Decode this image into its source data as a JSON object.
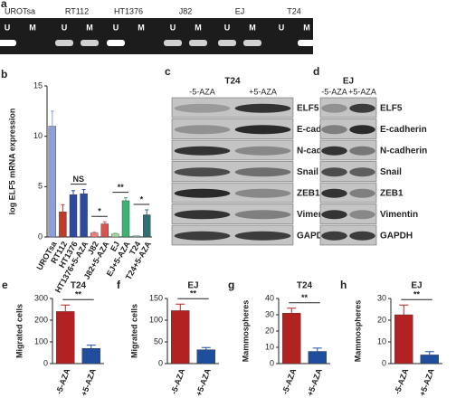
{
  "gel": {
    "label": "a",
    "samples": [
      "UROTsa",
      "RT112",
      "HT1376",
      "J82",
      "EJ",
      "T24"
    ],
    "lanes": [
      "U",
      "M"
    ]
  },
  "blots": [
    {
      "label": "c",
      "title": "T24",
      "conditions": [
        "-5-AZA",
        "+5-AZA"
      ],
      "proteins": [
        "ELF5",
        "E-cadherin",
        "N-cadherin",
        "Snail",
        "ZEB1",
        "Vimentin",
        "GAPDH"
      ]
    },
    {
      "label": "d",
      "title": "EJ",
      "conditions": [
        "-5-AZA",
        "+5-AZA"
      ],
      "proteins": [
        "ELF5",
        "E-cadherin",
        "N-cadherin",
        "Snail",
        "ZEB1",
        "Vimentin",
        "GAPDH"
      ]
    }
  ],
  "chart_data": [
    {
      "type": "bar",
      "panel": "b",
      "y_label": "log ELF5 mRNA expression",
      "categories": [
        "UROTsa",
        "RT112",
        "HT1376",
        "HT1376+5-AZA",
        "J82",
        "J82+5-AZA",
        "EJ",
        "EJ+5-AZA",
        "T24",
        "T24+5-AZA"
      ],
      "values": [
        11,
        2.5,
        4.2,
        4.3,
        0.4,
        1.3,
        0.3,
        3.6,
        0.1,
        2.2
      ],
      "errors": [
        1.5,
        0.7,
        0.4,
        0.4,
        0.1,
        0.2,
        0.1,
        0.3,
        0.05,
        0.5
      ],
      "colors": [
        "#8d9fd6",
        "#c0392b",
        "#2e4a9e",
        "#2e4a9e",
        "#f08080",
        "#d9534f",
        "#9fdb9f",
        "#3cb371",
        "#9cc9c7",
        "#2f6f73"
      ],
      "annotations": [
        "NS",
        "*",
        "**",
        "*"
      ],
      "ylim": [
        0,
        15
      ],
      "yticks": [
        0,
        5,
        10,
        15
      ]
    },
    {
      "type": "bar",
      "panel": "e",
      "title": "T24",
      "y_label": "Migrated cells",
      "categories": [
        "-5-AZA",
        "+5-AZA"
      ],
      "values": [
        240,
        70
      ],
      "errors": [
        30,
        15
      ],
      "colors": [
        "#b22222",
        "#1f4e9c"
      ],
      "annotations": [
        "**"
      ],
      "ylim": [
        0,
        300
      ],
      "yticks": [
        0,
        100,
        200,
        300
      ]
    },
    {
      "type": "bar",
      "panel": "f",
      "title": "EJ",
      "y_label": "Migrated cells",
      "categories": [
        "-5-AZA",
        "+5-AZA"
      ],
      "values": [
        122,
        32
      ],
      "errors": [
        15,
        5
      ],
      "colors": [
        "#b22222",
        "#1f4e9c"
      ],
      "annotations": [
        "**"
      ],
      "ylim": [
        0,
        150
      ],
      "yticks": [
        0,
        50,
        100,
        150
      ]
    },
    {
      "type": "bar",
      "panel": "g",
      "title": "T24",
      "y_label": "Mammospheres",
      "categories": [
        "-5-AZA",
        "+5-AZA"
      ],
      "values": [
        31,
        7.5
      ],
      "errors": [
        3,
        2
      ],
      "colors": [
        "#b22222",
        "#1f4e9c"
      ],
      "annotations": [
        "**"
      ],
      "ylim": [
        0,
        40
      ],
      "yticks": [
        0,
        10,
        20,
        30,
        40
      ]
    },
    {
      "type": "bar",
      "panel": "h",
      "title": "EJ",
      "y_label": "Mammospheres",
      "categories": [
        "-5-AZA",
        "+5-AZA"
      ],
      "values": [
        22.5,
        4
      ],
      "errors": [
        4.5,
        1.5
      ],
      "colors": [
        "#b22222",
        "#1f4e9c"
      ],
      "annotations": [
        "**"
      ],
      "ylim": [
        0,
        30
      ],
      "yticks": [
        0,
        10,
        20,
        30
      ]
    }
  ]
}
